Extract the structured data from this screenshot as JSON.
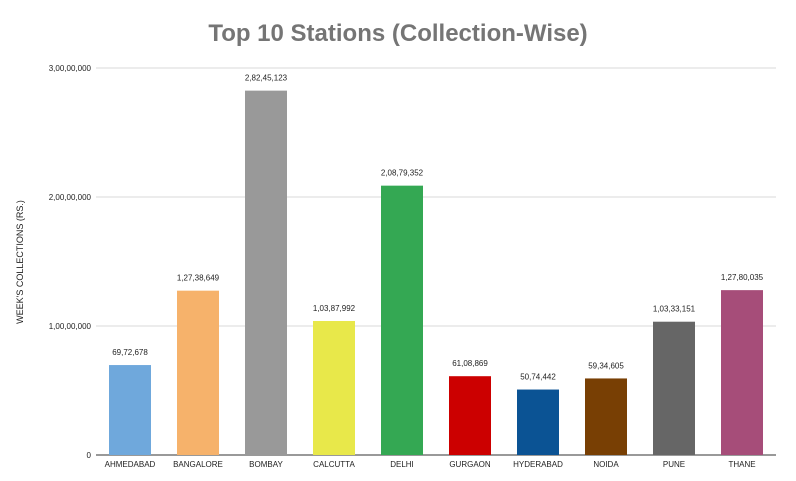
{
  "chart_data": {
    "type": "bar",
    "title": "Top 10 Stations (Collection-Wise)",
    "xlabel": "",
    "ylabel": "WEEK'S COLLECTIONS (RS.)",
    "ylim": [
      0,
      30000000
    ],
    "yticks": [
      0,
      10000000,
      20000000,
      30000000
    ],
    "ytick_labels": [
      "0",
      "1,00,00,000",
      "2,00,00,000",
      "3,00,00,000"
    ],
    "grid": true,
    "categories": [
      "AHMEDABAD",
      "BANGALORE",
      "BOMBAY",
      "CALCUTTA",
      "DELHI",
      "GURGAON",
      "HYDERABAD",
      "NOIDA",
      "PUNE",
      "THANE"
    ],
    "values": [
      6972678,
      12738649,
      28245123,
      10387992,
      20879352,
      6108869,
      5074442,
      5934605,
      10333151,
      12780035
    ],
    "data_labels": [
      "69,72,678",
      "1,27,38,649",
      "2,82,45,123",
      "1,03,87,992",
      "2,08,79,352",
      "61,08,869",
      "50,74,442",
      "59,34,605",
      "1,03,33,151",
      "1,27,80,035"
    ],
    "colors": [
      "#6fa8dc",
      "#f6b26b",
      "#999999",
      "#e8e84a",
      "#34a853",
      "#cc0000",
      "#0b5394",
      "#783f04",
      "#666666",
      "#a64d79"
    ]
  }
}
